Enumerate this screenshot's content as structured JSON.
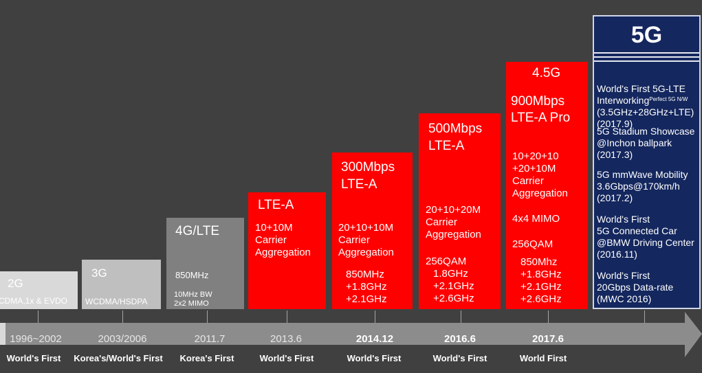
{
  "chart_data": {
    "type": "timeline",
    "stages": [
      {
        "generation": "2G",
        "tech": "CDMA,1x & EVDO",
        "year": "1996~2002",
        "claim": "World's First"
      },
      {
        "generation": "3G",
        "tech": "WCDMA/HSDPA",
        "year": "2003/2006",
        "claim": "Korea's/World's First"
      },
      {
        "generation": "4G/LTE",
        "specs": [
          "850MHz",
          "10MHz BW",
          "2x2 MIMO"
        ],
        "year": "2011.7",
        "claim": "Korea's First"
      },
      {
        "generation": "LTE-A",
        "specs": [
          "10+10M",
          "Carrier",
          "Aggregation"
        ],
        "year": "2013.6",
        "claim": "World's First"
      },
      {
        "generation": "300Mbps LTE-A",
        "specs": [
          "20+10+10M",
          "Carrier",
          "Aggregation",
          "850MHz",
          "+1.8GHz",
          "+2.1GHz"
        ],
        "year": "2014.12",
        "claim": "World's First"
      },
      {
        "generation": "500Mbps LTE-A",
        "specs": [
          "20+10+20M",
          "Carrier",
          "Aggregation",
          "256QAM",
          "1.8GHz",
          "+2.1GHz",
          "+2.6GHz"
        ],
        "year": "2016.6",
        "claim": "World's First"
      },
      {
        "generation": "4.5G 900Mbps LTE-A Pro",
        "specs": [
          "10+20+10",
          "+20+10M",
          "Carrier",
          "Aggregation",
          "4x4 MIMO",
          "256QAM",
          "850Mhz",
          "+1.8GHz",
          "+2.1GHz",
          "+2.6GHz"
        ],
        "year": "2017.6",
        "claim": "World First"
      },
      {
        "generation": "5G",
        "achievements": [
          "World's First 5G-LTE Interworking (Perfect 5G N/W) (3.5GHz+28GHz+LTE) (2017.9)",
          "5G Stadium Showcase @Inchon ballpark (2017.3)",
          "5G mmWave Mobility 3.6Gbps@170km/h (2017.2)",
          "World's First 5G Connected Car @BMW Driving Center (2016.11)",
          "World's First 20Gbps Data-rate (MWC 2016)"
        ]
      }
    ]
  },
  "boxes": {
    "g2": {
      "title": "2G",
      "sub": "CDMA,1x & EVDO"
    },
    "g3": {
      "title": "3G",
      "sub": "WCDMA/HSDPA"
    },
    "g4": {
      "title": "4G/LTE",
      "freq": "850MHz",
      "bw": "10MHz BW",
      "mimo": "2x2 MIMO"
    },
    "ltea": {
      "title": "LTE-A",
      "ca": "10+10M\nCarrier\nAggregation"
    },
    "l300": {
      "title": "300Mbps\nLTE-A",
      "ca": "20+10+10M\nCarrier\nAggregation",
      "freq": "850MHz\n+1.8GHz\n+2.1GHz"
    },
    "l500": {
      "title": "500Mbps\nLTE-A",
      "ca": "20+10+20M\nCarrier\nAggregation",
      "qam": "256QAM",
      "freq": "1.8GHz\n+2.1GHz\n+2.6GHz"
    },
    "l45": {
      "title_top": "4.5G",
      "title": "900Mbps\nLTE-A Pro",
      "ca": "10+20+10\n+20+10M\nCarrier\nAggregation",
      "mimo": "4x4 MIMO",
      "qam": "256QAM",
      "freq": "850Mhz\n+1.8GHz\n+2.1GHz\n+2.6GHz"
    },
    "g5": {
      "title": "5G",
      "a1_pre": "World's First 5G-LTE\nInterworking",
      "a1_sup": "Perfect 5G N/W",
      "a1_post": "(3.5GHz+28GHz+LTE)\n(2017.9)",
      "a2": "5G Stadium Showcase\n@Inchon ballpark\n(2017.3)",
      "a3": "5G mmWave Mobility\n3.6Gbps@170km/h\n(2017.2)",
      "a4": "World's First\n5G Connected Car\n@BMW Driving Center\n(2016.11)",
      "a5": "World's First\n20Gbps Data-rate\n(MWC 2016)"
    }
  },
  "timeline": {
    "years": [
      "1996~2002",
      "2003/2006",
      "2011.7",
      "2013.6",
      "2014.12",
      "2016.6",
      "2017.6"
    ],
    "firsts": [
      "World's First",
      "Korea's/World's First",
      "Korea's First",
      "World's First",
      "World's First",
      "World's First",
      "World First"
    ]
  },
  "colors": {
    "background": "#404040",
    "red": "#ff0000",
    "navy": "#14275e",
    "gray": "#bfbfbf",
    "arrow": "#8c8c8c"
  }
}
